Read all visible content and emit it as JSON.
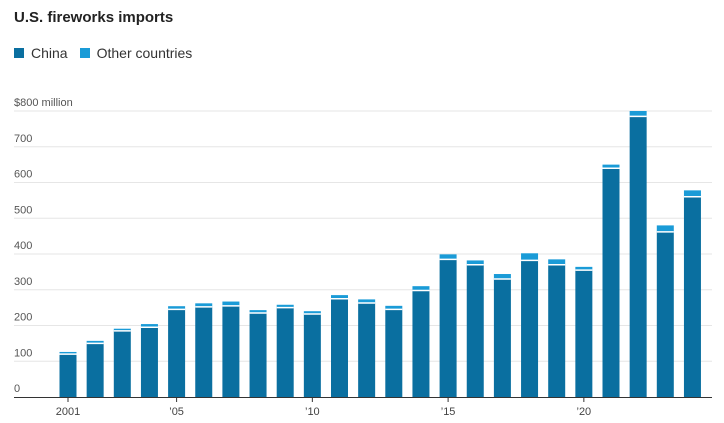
{
  "chart_data": {
    "type": "bar",
    "stacked": true,
    "title": "U.S. fireworks imports",
    "colors": {
      "China": "#0a6fa0",
      "Other countries": "#1a9bd7",
      "separator": "#ffffff",
      "grid": "#e6e6e6",
      "axis": "#333333"
    },
    "x": [
      2001,
      2002,
      2003,
      2004,
      2005,
      2006,
      2007,
      2008,
      2009,
      2010,
      2011,
      2012,
      2013,
      2014,
      2015,
      2016,
      2017,
      2018,
      2019,
      2020,
      2021,
      2022,
      2023,
      2024
    ],
    "series": [
      {
        "name": "China",
        "values": [
          120,
          150,
          185,
          195,
          245,
          252,
          255,
          235,
          250,
          232,
          275,
          263,
          245,
          298,
          385,
          370,
          330,
          382,
          370,
          355,
          640,
          785,
          462,
          560
        ]
      },
      {
        "name": "Other countries",
        "values": [
          6,
          7,
          6,
          9,
          9,
          10,
          12,
          8,
          8,
          8,
          10,
          10,
          10,
          12,
          14,
          12,
          14,
          20,
          15,
          9,
          10,
          15,
          18,
          18
        ]
      }
    ],
    "ylim": [
      0,
      800
    ],
    "yticks": [
      0,
      100,
      200,
      300,
      400,
      500,
      600,
      700,
      800
    ],
    "ytick_labels": [
      "0",
      "100",
      "200",
      "300",
      "400",
      "500",
      "600",
      "700",
      "$800 million"
    ],
    "xtick_values": [
      2001,
      2005,
      2010,
      2015,
      2020
    ],
    "xtick_labels": [
      "2001",
      "’05",
      "’10",
      "’15",
      "’20"
    ],
    "legend": {
      "placement": "top-left",
      "entries": [
        "China",
        "Other countries"
      ]
    },
    "grid": true
  }
}
